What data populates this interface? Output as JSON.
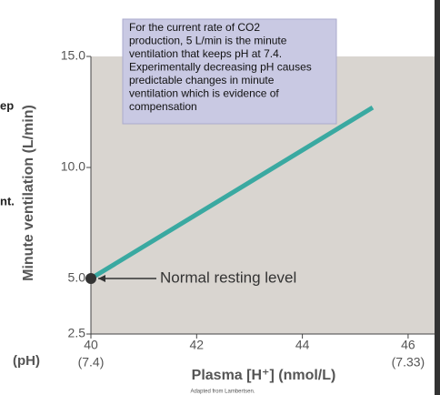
{
  "chart_data": {
    "type": "line",
    "xlabel": "Plasma [H⁺] (nmol/L)",
    "ylabel": "Minute ventilation (L/min)",
    "xlim": [
      40,
      46.5
    ],
    "ylim": [
      2.5,
      15
    ],
    "xticks": [
      40,
      42,
      44,
      46
    ],
    "x_sublabels": [
      {
        "value": 40,
        "label": "(7.4)"
      },
      {
        "value": 46,
        "label": "(7.33)"
      }
    ],
    "yticks": [
      {
        "value": 2.5,
        "label": "2.5"
      },
      {
        "value": 5,
        "label": "5.0"
      },
      {
        "value": 10,
        "label": "10.0"
      },
      {
        "value": 15,
        "label": "15.0"
      }
    ],
    "series": [
      {
        "color": "#3aa9a1",
        "x": [
          40,
          45.33
        ],
        "values": [
          5,
          12.7
        ]
      }
    ],
    "marker_label": "Normal resting level",
    "callout": [
      "For the current rate of CO2",
      "production, 5 L/min is the minute",
      "ventilation that keeps pH at 7.4.",
      "Experimentally decreasing pH causes",
      "predictable changes in minute",
      "ventilation which is evidence of",
      "compensation"
    ],
    "source": "Adapted from Lambertsen.",
    "side_fragments": [
      "ep",
      "nt.",
      "(pH)"
    ]
  }
}
